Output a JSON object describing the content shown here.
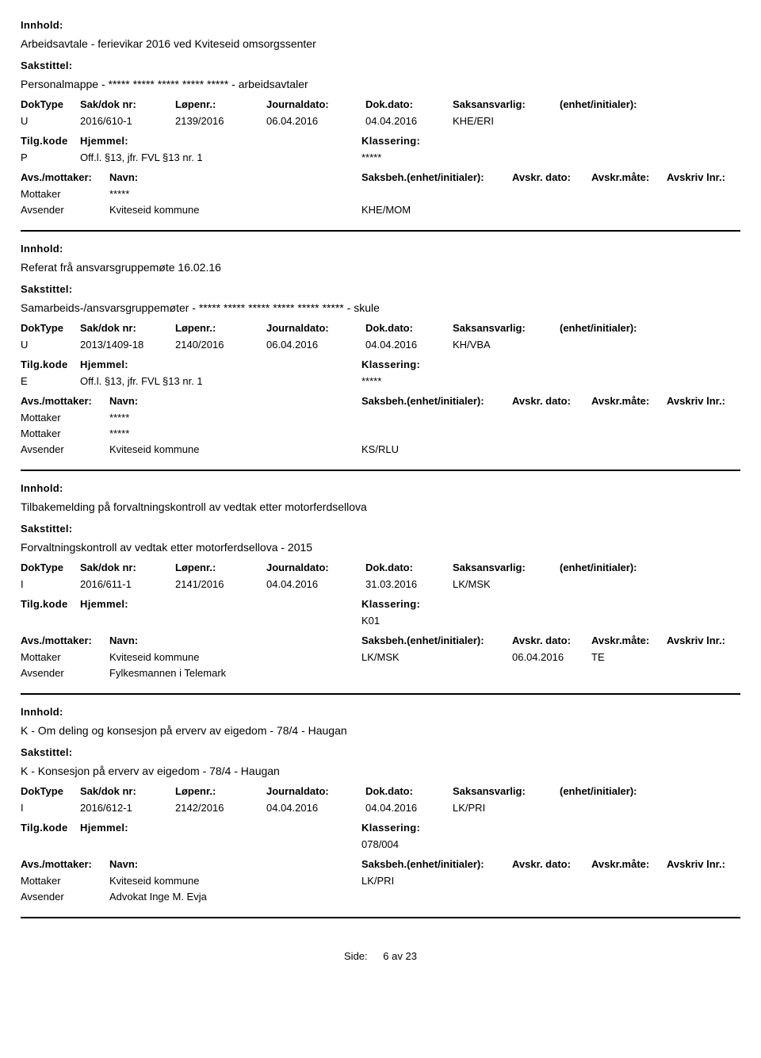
{
  "labels": {
    "innhold": "Innhold:",
    "sakstittel": "Sakstittel:",
    "doktype": "DokType",
    "sakdok": "Sak/dok nr:",
    "lopenr": "Løpenr.:",
    "journaldato": "Journaldato:",
    "dokdato": "Dok.dato:",
    "saksansvarlig": "Saksansvarlig:",
    "enhet": "(enhet/initialer):",
    "tilgkode": "Tilg.kode",
    "hjemmel": "Hjemmel:",
    "klassering": "Klassering:",
    "avsmottaker": "Avs./mottaker:",
    "navn": "Navn:",
    "saksbeh": "Saksbeh.(enhet/initialer):",
    "avskrdato": "Avskr. dato:",
    "avskrmate": "Avskr.måte:",
    "avskrivlnr": "Avskriv lnr.:",
    "mottaker": "Mottaker",
    "avsender": "Avsender"
  },
  "records": [
    {
      "innhold": "Arbeidsavtale - ferievikar 2016 ved Kviteseid omsorgssenter",
      "sakstittel": "Personalmappe - ***** ***** ***** ***** ***** - arbeidsavtaler",
      "doktype": "U",
      "sakdok": "2016/610-1",
      "lopenr": "2139/2016",
      "journaldato": "06.04.2016",
      "dokdato": "04.04.2016",
      "saksansvarlig": "KHE/ERI",
      "enhet": "",
      "tilgkode": "P",
      "hjemmel": "Off.l. §13, jfr. FVL §13 nr. 1",
      "klassering": "*****",
      "parties": [
        {
          "role": "Mottaker",
          "name": "*****",
          "beh": "",
          "dato": "",
          "mate": "",
          "lnr": ""
        },
        {
          "role": "Avsender",
          "name": "Kviteseid kommune",
          "beh": "KHE/MOM",
          "dato": "",
          "mate": "",
          "lnr": ""
        }
      ]
    },
    {
      "innhold": "Referat frå ansvarsgruppemøte 16.02.16",
      "sakstittel": "Samarbeids-/ansvarsgruppemøter - ***** ***** ***** ***** ***** ***** - skule",
      "doktype": "U",
      "sakdok": "2013/1409-18",
      "lopenr": "2140/2016",
      "journaldato": "06.04.2016",
      "dokdato": "04.04.2016",
      "saksansvarlig": "KH/VBA",
      "enhet": "",
      "tilgkode": "E",
      "hjemmel": "Off.l. §13, jfr. FVL §13 nr. 1",
      "klassering": "*****",
      "parties": [
        {
          "role": "Mottaker",
          "name": "*****",
          "beh": "",
          "dato": "",
          "mate": "",
          "lnr": ""
        },
        {
          "role": "Mottaker",
          "name": "*****",
          "beh": "",
          "dato": "",
          "mate": "",
          "lnr": ""
        },
        {
          "role": "Avsender",
          "name": "Kviteseid kommune",
          "beh": "KS/RLU",
          "dato": "",
          "mate": "",
          "lnr": ""
        }
      ]
    },
    {
      "innhold": "Tilbakemelding på forvaltningskontroll av vedtak etter motorferdsellova",
      "sakstittel": "Forvaltningskontroll av vedtak etter motorferdsellova - 2015",
      "doktype": "I",
      "sakdok": "2016/611-1",
      "lopenr": "2141/2016",
      "journaldato": "04.04.2016",
      "dokdato": "31.03.2016",
      "saksansvarlig": "LK/MSK",
      "enhet": "",
      "tilgkode": "",
      "hjemmel": "",
      "klassering": "K01",
      "parties": [
        {
          "role": "Mottaker",
          "name": "Kviteseid kommune",
          "beh": "LK/MSK",
          "dato": "06.04.2016",
          "mate": "TE",
          "lnr": ""
        },
        {
          "role": "Avsender",
          "name": "Fylkesmannen i Telemark",
          "beh": "",
          "dato": "",
          "mate": "",
          "lnr": ""
        }
      ]
    },
    {
      "innhold": "K - Om deling og konsesjon på erverv av eigedom - 78/4 - Haugan",
      "sakstittel": "K - Konsesjon på erverv av eigedom - 78/4 - Haugan",
      "doktype": "I",
      "sakdok": "2016/612-1",
      "lopenr": "2142/2016",
      "journaldato": "04.04.2016",
      "dokdato": "04.04.2016",
      "saksansvarlig": "LK/PRI",
      "enhet": "",
      "tilgkode": "",
      "hjemmel": "",
      "klassering": "078/004",
      "parties": [
        {
          "role": "Mottaker",
          "name": "Kviteseid kommune",
          "beh": "LK/PRI",
          "dato": "",
          "mate": "",
          "lnr": ""
        },
        {
          "role": "Avsender",
          "name": "Advokat Inge M. Evja",
          "beh": "",
          "dato": "",
          "mate": "",
          "lnr": ""
        }
      ]
    }
  ],
  "footer": {
    "side_label": "Side:",
    "page": "6",
    "av": "av",
    "total": "23"
  }
}
